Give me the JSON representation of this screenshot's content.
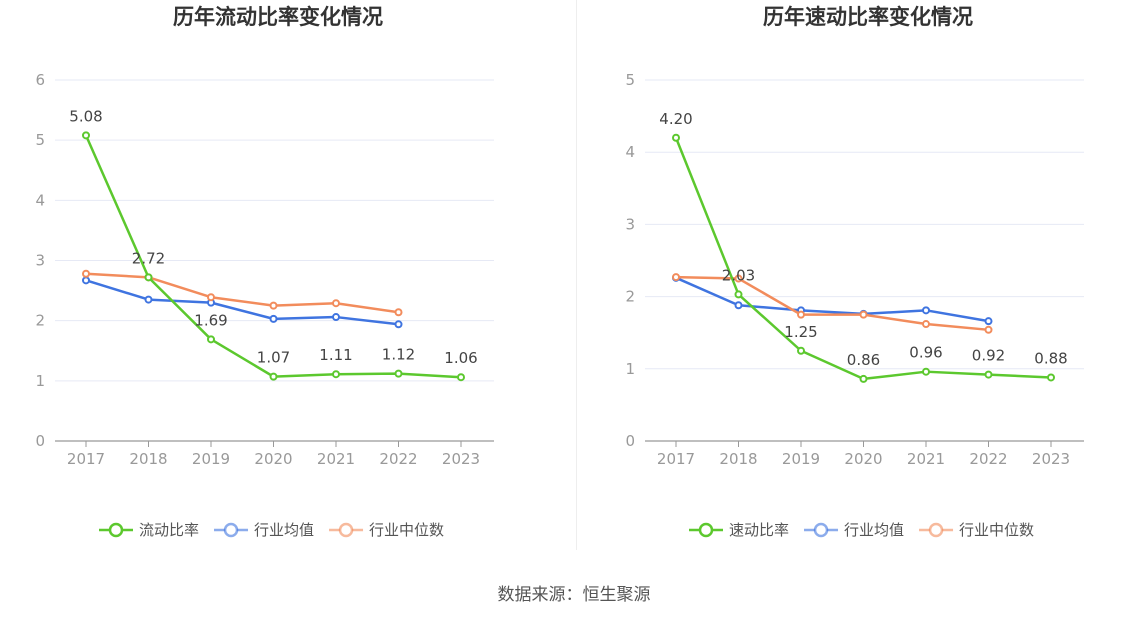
{
  "chart_data": [
    {
      "type": "line",
      "title": "历年流动比率变化情况",
      "categories": [
        "2017",
        "2018",
        "2019",
        "2020",
        "2021",
        "2022",
        "2023"
      ],
      "ylim": [
        0,
        6
      ],
      "yticks": [
        "0",
        "1",
        "2",
        "3",
        "4",
        "5",
        "6"
      ],
      "legend_position": "bottom",
      "series": [
        {
          "name": "流动比率",
          "color": "#5cc82e",
          "values": [
            5.08,
            2.72,
            1.69,
            1.07,
            1.11,
            1.12,
            1.06
          ],
          "labels": [
            "5.08",
            "2.72",
            "1.69",
            "1.07",
            "1.11",
            "1.12",
            "1.06"
          ]
        },
        {
          "name": "行业均值",
          "color": "#3f74e0",
          "values": [
            2.67,
            2.35,
            2.3,
            2.03,
            2.06,
            1.94,
            null
          ]
        },
        {
          "name": "行业中位数",
          "color": "#f28c5c",
          "values": [
            2.78,
            2.72,
            2.39,
            2.25,
            2.29,
            2.14,
            null
          ]
        }
      ]
    },
    {
      "type": "line",
      "title": "历年速动比率变化情况",
      "categories": [
        "2017",
        "2018",
        "2019",
        "2020",
        "2021",
        "2022",
        "2023"
      ],
      "ylim": [
        0,
        5
      ],
      "yticks": [
        "0",
        "1",
        "2",
        "3",
        "4",
        "5"
      ],
      "legend_position": "bottom",
      "series": [
        {
          "name": "速动比率",
          "color": "#5cc82e",
          "values": [
            4.2,
            2.03,
            1.25,
            0.86,
            0.96,
            0.92,
            0.88
          ],
          "labels": [
            "4.20",
            "2.03",
            "1.25",
            "0.86",
            "0.96",
            "0.92",
            "0.88"
          ]
        },
        {
          "name": "行业均值",
          "color": "#3f74e0",
          "values": [
            2.26,
            1.88,
            1.81,
            1.76,
            1.81,
            1.66,
            null
          ]
        },
        {
          "name": "行业中位数",
          "color": "#f28c5c",
          "values": [
            2.27,
            2.25,
            1.75,
            1.75,
            1.62,
            1.54,
            null
          ]
        }
      ]
    }
  ],
  "source": "数据来源：恒生聚源"
}
